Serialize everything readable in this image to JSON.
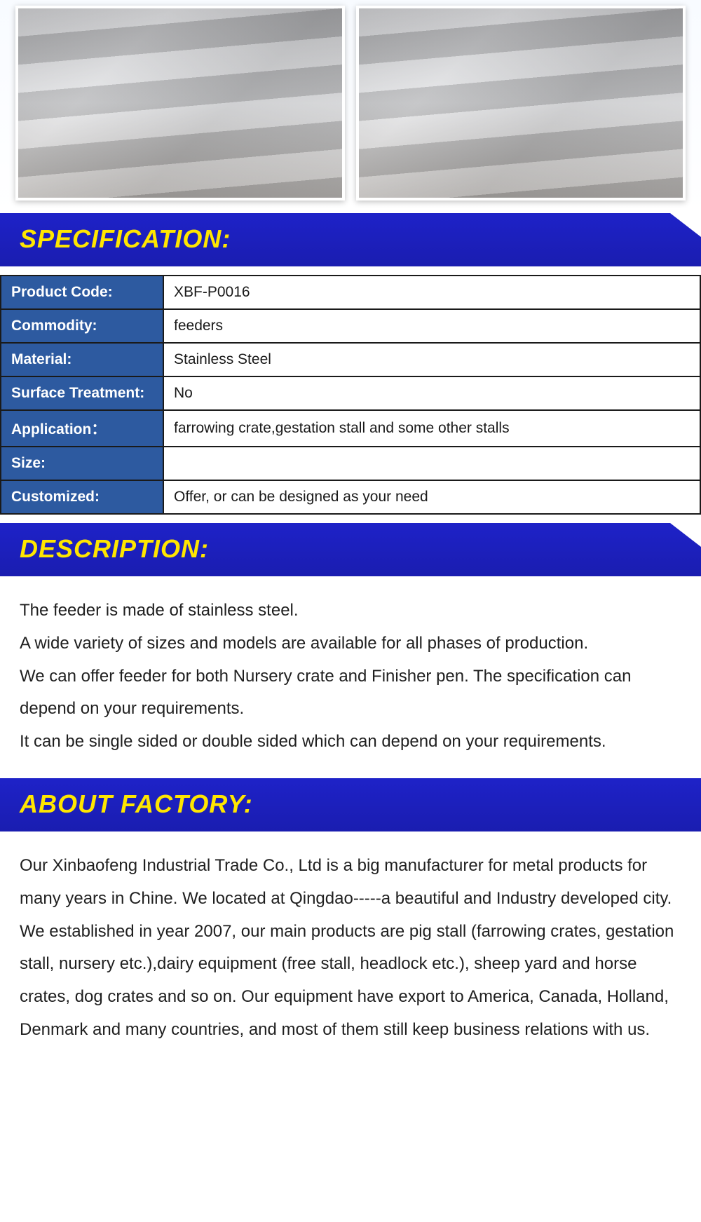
{
  "headers": {
    "specification": "SPECIFICATION:",
    "description": "DESCRIPTION:",
    "about": "ABOUT FACTORY:"
  },
  "spec": {
    "rows": [
      {
        "label": "Product Code:",
        "value": "XBF-P0016"
      },
      {
        "label": "Commodity:",
        "value": "feeders"
      },
      {
        "label": "Material:",
        "value": "Stainless Steel"
      },
      {
        "label": "Surface Treatment:",
        "value": "No"
      },
      {
        "label": "Application：",
        "value": "farrowing crate,gestation stall and some other stalls"
      },
      {
        "label": "Size:",
        "value": ""
      },
      {
        "label": "Customized:",
        "value": "Offer, or can be designed as your need"
      }
    ]
  },
  "description": {
    "p1": "The feeder is made of stainless steel.",
    "p2": "A wide variety of sizes and models are available for all phases of production.",
    "p3": "We can offer feeder for both Nursery crate and Finisher pen. The specification can depend on your requirements.",
    "p4": "It can be single sided or double sided which can depend on your requirements."
  },
  "about": {
    "p1": "Our Xinbaofeng Industrial Trade Co., Ltd is a big manufacturer for metal products for many years in Chine. We located at Qingdao-----a beautiful and Industry developed city.",
    "p2": "We established in year 2007, our main products are pig stall (farrowing crates, gestation stall, nursery etc.),dairy equipment (free stall, headlock etc.), sheep yard and horse crates, dog crates and so on. Our equipment have export to America, Canada, Holland, Denmark and many countries, and most of them still keep business relations with us."
  },
  "colors": {
    "header_bg": "#1b1fb8",
    "header_text": "#ffe600",
    "table_label_bg": "#2d5aa0",
    "table_label_text": "#ffffff",
    "table_border": "#1a1a1a",
    "body_text": "#1f1f1f"
  }
}
